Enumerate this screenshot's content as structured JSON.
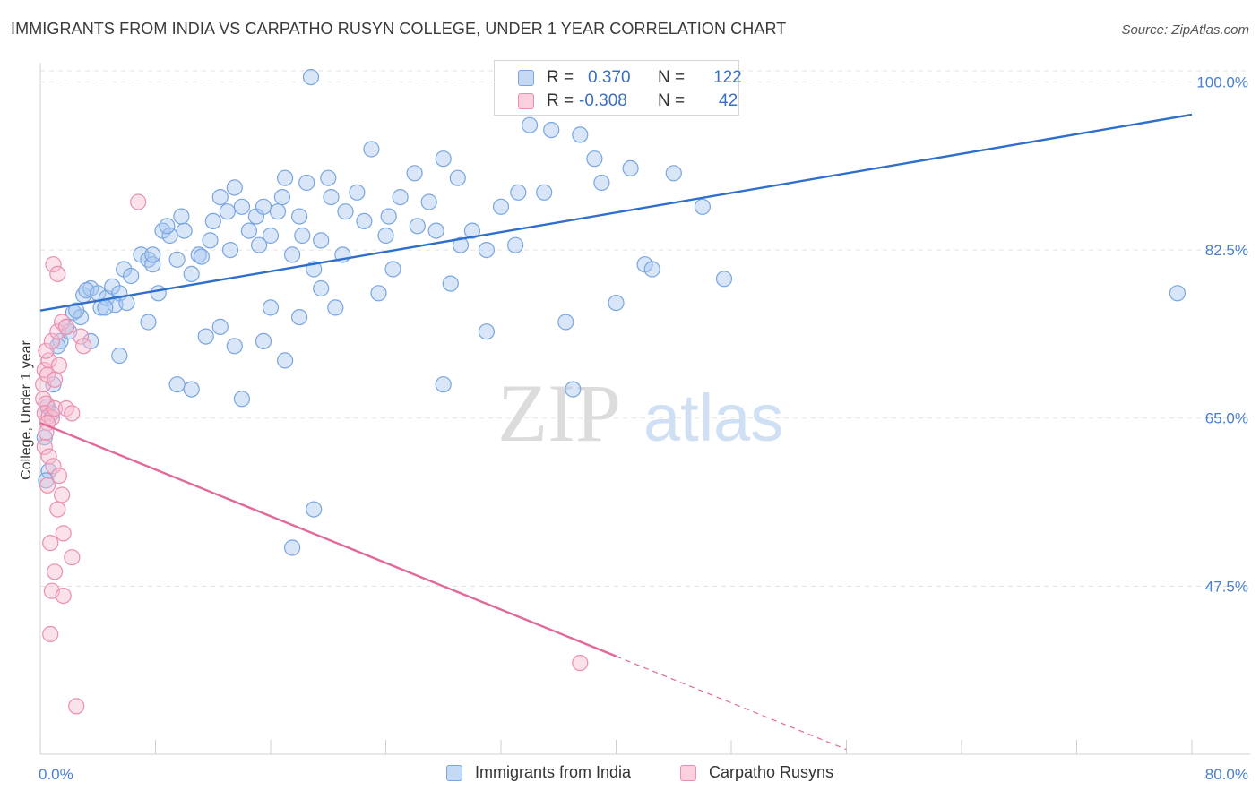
{
  "title": "IMMIGRANTS FROM INDIA VS CARPATHO RUSYN COLLEGE, UNDER 1 YEAR CORRELATION CHART",
  "source": "Source: ZipAtlas.com",
  "watermark": {
    "zip": "ZIP",
    "atlas": "atlas"
  },
  "legend": {
    "rows": [
      {
        "r_label": "R =",
        "r_value": "0.370",
        "n_label": "N =",
        "n_value": "122",
        "color": "#a9c8f0",
        "stroke": "#7aa5e0"
      },
      {
        "r_label": "R =",
        "r_value": "-0.308",
        "n_label": "N =",
        "n_value": "42",
        "color": "#f7bcd0",
        "stroke": "#ea8fb0"
      }
    ]
  },
  "series_legend": [
    {
      "label": "Immigrants from India",
      "color": "#a9c8f0",
      "stroke": "#7aa5e0"
    },
    {
      "label": "Carpatho Rusyns",
      "color": "#f7bcd0",
      "stroke": "#ea8fb0"
    }
  ],
  "chart_data": {
    "type": "scatter",
    "title": "IMMIGRANTS FROM INDIA VS CARPATHO RUSYN COLLEGE, UNDER 1 YEAR CORRELATION CHART",
    "xlabel": "",
    "ylabel": "College, Under 1 year",
    "xlim": [
      0,
      80
    ],
    "ylim": [
      30,
      102
    ],
    "x_tick_labels": [
      "0.0%",
      "80.0%"
    ],
    "y_ticks": [
      47.5,
      65.0,
      82.5,
      100.0
    ],
    "y_tick_labels": [
      "47.5%",
      "65.0%",
      "82.5%",
      "100.0%"
    ],
    "grid": "horizontal dashed",
    "legend_position": "top-center",
    "series": [
      {
        "name": "Immigrants from India",
        "color": "#7aa5e0",
        "trend": {
          "x": [
            0,
            80
          ],
          "y": [
            76.2,
            96.6
          ]
        },
        "points": [
          [
            0.5,
            66.2
          ],
          [
            0.8,
            65.5
          ],
          [
            0.3,
            63.0
          ],
          [
            0.6,
            59.5
          ],
          [
            0.4,
            58.5
          ],
          [
            0.9,
            68.5
          ],
          [
            1.4,
            73.0
          ],
          [
            1.8,
            74.5
          ],
          [
            2.0,
            74.0
          ],
          [
            2.3,
            76.0
          ],
          [
            2.8,
            75.5
          ],
          [
            1.2,
            72.5
          ],
          [
            2.5,
            76.2
          ],
          [
            3.0,
            77.8
          ],
          [
            3.5,
            78.5
          ],
          [
            3.2,
            78.3
          ],
          [
            4.0,
            78.0
          ],
          [
            4.2,
            76.5
          ],
          [
            4.6,
            77.5
          ],
          [
            5.0,
            78.7
          ],
          [
            5.5,
            78.0
          ],
          [
            5.2,
            76.8
          ],
          [
            6.0,
            77.0
          ],
          [
            5.8,
            80.5
          ],
          [
            6.3,
            79.8
          ],
          [
            7.0,
            82.0
          ],
          [
            7.5,
            81.5
          ],
          [
            7.8,
            81.0
          ],
          [
            8.2,
            78.0
          ],
          [
            8.5,
            84.5
          ],
          [
            9.0,
            84.0
          ],
          [
            9.5,
            81.5
          ],
          [
            10.0,
            84.5
          ],
          [
            10.5,
            80.0
          ],
          [
            11.0,
            82.0
          ],
          [
            11.2,
            81.8
          ],
          [
            12.0,
            85.5
          ],
          [
            12.5,
            88.0
          ],
          [
            13.0,
            86.5
          ],
          [
            13.5,
            89.0
          ],
          [
            14.0,
            87.0
          ],
          [
            14.5,
            84.5
          ],
          [
            15.0,
            86.0
          ],
          [
            15.5,
            87.0
          ],
          [
            16.0,
            84.0
          ],
          [
            16.5,
            86.5
          ],
          [
            17.0,
            90.0
          ],
          [
            17.5,
            82.0
          ],
          [
            18.0,
            86.0
          ],
          [
            18.5,
            89.5
          ],
          [
            19.0,
            80.5
          ],
          [
            19.5,
            83.5
          ],
          [
            20.0,
            90.0
          ],
          [
            21.0,
            82.0
          ],
          [
            22.0,
            88.5
          ],
          [
            22.5,
            85.5
          ],
          [
            23.0,
            93.0
          ],
          [
            24.0,
            84.0
          ],
          [
            24.5,
            80.5
          ],
          [
            25.0,
            88.0
          ],
          [
            26.0,
            90.5
          ],
          [
            27.0,
            87.5
          ],
          [
            27.5,
            84.5
          ],
          [
            28.0,
            92.0
          ],
          [
            29.0,
            90.0
          ],
          [
            30.0,
            84.5
          ],
          [
            31.0,
            82.5
          ],
          [
            32.0,
            87.0
          ],
          [
            33.0,
            83.0
          ],
          [
            34.0,
            95.5
          ],
          [
            35.0,
            88.5
          ],
          [
            35.5,
            95.0
          ],
          [
            36.5,
            75.0
          ],
          [
            37.5,
            94.5
          ],
          [
            38.5,
            92.0
          ],
          [
            39.0,
            89.5
          ],
          [
            40.0,
            77.0
          ],
          [
            41.0,
            91.0
          ],
          [
            42.0,
            81.0
          ],
          [
            42.5,
            80.5
          ],
          [
            44.0,
            90.5
          ],
          [
            46.0,
            87.0
          ],
          [
            47.5,
            79.5
          ],
          [
            3.5,
            73.0
          ],
          [
            4.5,
            76.5
          ],
          [
            5.5,
            71.5
          ],
          [
            7.5,
            75.0
          ],
          [
            9.5,
            68.5
          ],
          [
            10.5,
            68.0
          ],
          [
            11.5,
            73.5
          ],
          [
            12.5,
            74.5
          ],
          [
            13.5,
            72.5
          ],
          [
            14.0,
            67.0
          ],
          [
            15.5,
            73.0
          ],
          [
            16.0,
            76.5
          ],
          [
            17.0,
            71.0
          ],
          [
            18.0,
            75.5
          ],
          [
            19.5,
            78.5
          ],
          [
            20.5,
            76.5
          ],
          [
            23.5,
            78.0
          ],
          [
            28.5,
            79.0
          ],
          [
            31.0,
            74.0
          ],
          [
            19.0,
            55.5
          ],
          [
            17.5,
            51.5
          ],
          [
            28.0,
            68.5
          ],
          [
            37.0,
            68.0
          ],
          [
            79.0,
            78.0
          ],
          [
            18.8,
            100.5
          ],
          [
            7.8,
            82.0
          ],
          [
            8.8,
            85.0
          ],
          [
            9.8,
            86.0
          ],
          [
            11.8,
            83.5
          ],
          [
            13.2,
            82.5
          ],
          [
            15.2,
            83.0
          ],
          [
            16.8,
            88.0
          ],
          [
            18.2,
            84.0
          ],
          [
            20.2,
            88.0
          ],
          [
            21.2,
            86.5
          ],
          [
            24.2,
            86.0
          ],
          [
            26.2,
            85.0
          ],
          [
            29.2,
            83.0
          ],
          [
            33.2,
            88.5
          ]
        ]
      },
      {
        "name": "Carpatho Rusyns",
        "color": "#ea8fb0",
        "trend": {
          "x": [
            0,
            40
          ],
          "y": [
            64.5,
            40.2
          ]
        },
        "trend_dashed": {
          "x": [
            40,
            56
          ],
          "y": [
            40.2,
            30.5
          ]
        },
        "points": [
          [
            0.2,
            67.0
          ],
          [
            0.4,
            66.5
          ],
          [
            0.3,
            65.5
          ],
          [
            0.6,
            65.2
          ],
          [
            0.8,
            65.0
          ],
          [
            0.5,
            64.5
          ],
          [
            1.0,
            66.0
          ],
          [
            0.2,
            68.5
          ],
          [
            0.3,
            70.0
          ],
          [
            0.6,
            71.0
          ],
          [
            0.4,
            72.0
          ],
          [
            0.8,
            73.0
          ],
          [
            1.2,
            74.0
          ],
          [
            1.5,
            75.0
          ],
          [
            1.8,
            74.5
          ],
          [
            0.5,
            69.5
          ],
          [
            1.0,
            69.0
          ],
          [
            1.3,
            70.5
          ],
          [
            0.3,
            62.0
          ],
          [
            0.6,
            61.0
          ],
          [
            0.9,
            60.0
          ],
          [
            1.3,
            59.0
          ],
          [
            0.5,
            58.0
          ],
          [
            1.5,
            57.0
          ],
          [
            1.2,
            55.5
          ],
          [
            1.6,
            53.0
          ],
          [
            0.7,
            52.0
          ],
          [
            2.2,
            50.5
          ],
          [
            1.0,
            49.0
          ],
          [
            0.8,
            47.0
          ],
          [
            1.6,
            46.5
          ],
          [
            0.7,
            42.5
          ],
          [
            2.5,
            35.0
          ],
          [
            2.8,
            73.5
          ],
          [
            3.0,
            72.5
          ],
          [
            1.8,
            66.0
          ],
          [
            2.2,
            65.5
          ],
          [
            0.9,
            81.0
          ],
          [
            1.2,
            80.0
          ],
          [
            6.8,
            87.5
          ],
          [
            37.5,
            39.5
          ],
          [
            0.4,
            63.5
          ]
        ]
      }
    ]
  }
}
